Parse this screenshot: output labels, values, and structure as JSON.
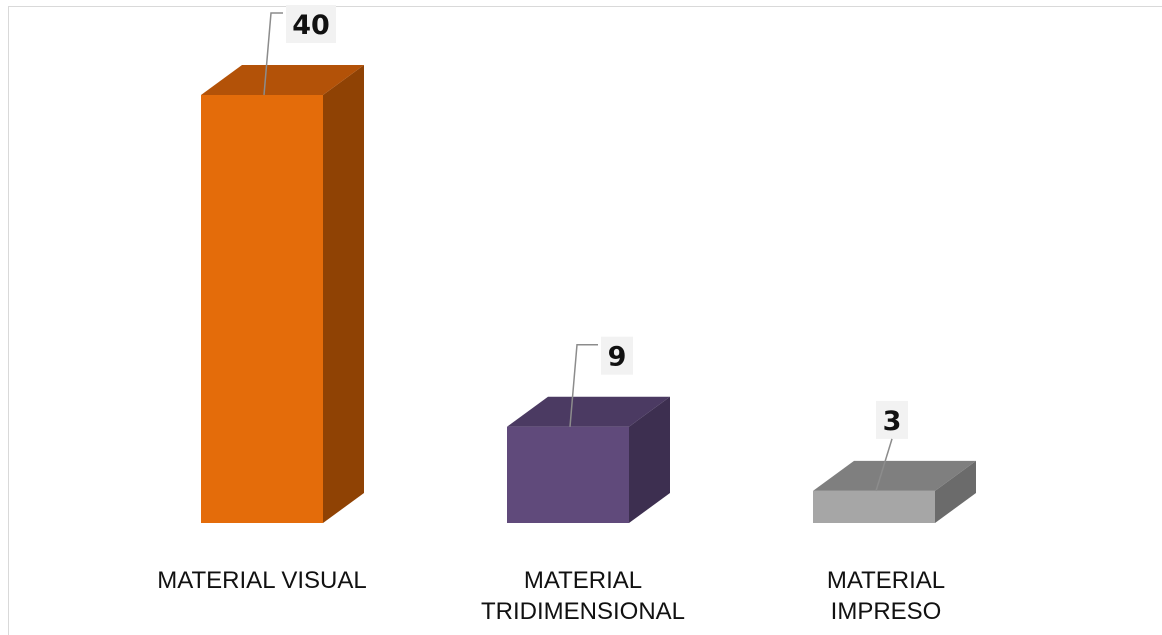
{
  "chart_data": {
    "type": "bar",
    "style": "3d-column",
    "categories": [
      [
        "MATERIAL VISUAL"
      ],
      [
        "MATERIAL",
        "TRIDIMENSIONAL"
      ],
      [
        "MATERIAL",
        "IMPRESO"
      ]
    ],
    "values": [
      40,
      9,
      3
    ],
    "data_labels": [
      "40",
      "9",
      "3"
    ],
    "colors": [
      {
        "front": "#e46c0a",
        "top": "#b35208",
        "side": "#8f4204"
      },
      {
        "front": "#604a7b",
        "top": "#4b3a62",
        "side": "#3d2f50"
      },
      {
        "front": "#a6a6a6",
        "top": "#7f7f7f",
        "side": "#6b6b6b"
      }
    ],
    "ylim": [
      0,
      40
    ],
    "grid": false,
    "legend": "none"
  }
}
